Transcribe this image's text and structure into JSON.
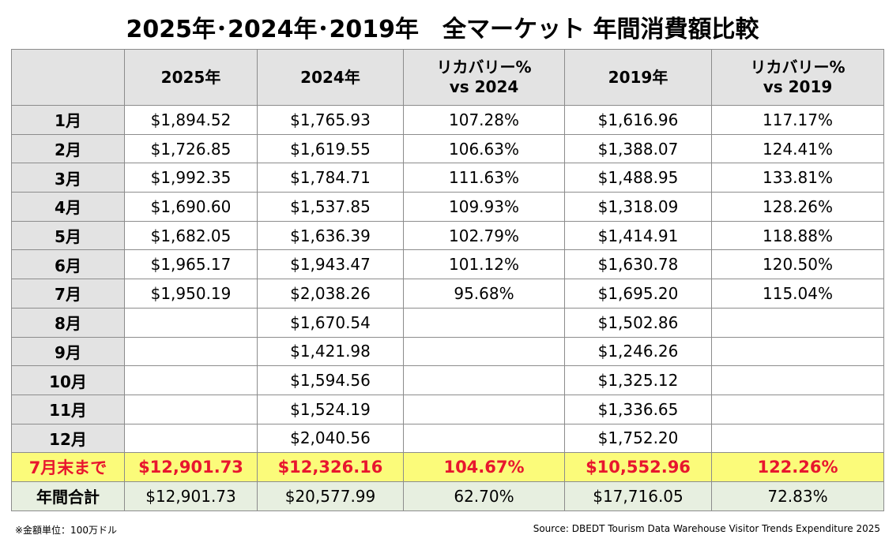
{
  "title": "2025年･2024年･2019年　全マーケット 年間消費額比較",
  "headers": [
    "",
    "2025年",
    "2024年",
    "リカバリー%\nvs 2024",
    "2019年",
    "リカバリー%\nvs 2019"
  ],
  "header_lines": {
    "rec2024": [
      "リカバリー%",
      "vs 2024"
    ],
    "rec2019": [
      "リカバリー%",
      "vs 2019"
    ]
  },
  "rows": [
    {
      "label": "1月",
      "y2025": "$1,894.52",
      "y2024": "$1,765.93",
      "rec2024": "107.28%",
      "y2019": "$1,616.96",
      "rec2019": "117.17%"
    },
    {
      "label": "2月",
      "y2025": "$1,726.85",
      "y2024": "$1,619.55",
      "rec2024": "106.63%",
      "y2019": "$1,388.07",
      "rec2019": "124.41%"
    },
    {
      "label": "3月",
      "y2025": "$1,992.35",
      "y2024": "$1,784.71",
      "rec2024": "111.63%",
      "y2019": "$1,488.95",
      "rec2019": "133.81%"
    },
    {
      "label": "4月",
      "y2025": "$1,690.60",
      "y2024": "$1,537.85",
      "rec2024": "109.93%",
      "y2019": "$1,318.09",
      "rec2019": "128.26%"
    },
    {
      "label": "5月",
      "y2025": "$1,682.05",
      "y2024": "$1,636.39",
      "rec2024": "102.79%",
      "y2019": "$1,414.91",
      "rec2019": "118.88%"
    },
    {
      "label": "6月",
      "y2025": "$1,965.17",
      "y2024": "$1,943.47",
      "rec2024": "101.12%",
      "y2019": "$1,630.78",
      "rec2019": "120.50%"
    },
    {
      "label": "7月",
      "y2025": "$1,950.19",
      "y2024": "$2,038.26",
      "rec2024": "95.68%",
      "y2019": "$1,695.20",
      "rec2019": "115.04%"
    },
    {
      "label": "8月",
      "y2025": "",
      "y2024": "$1,670.54",
      "rec2024": "",
      "y2019": "$1,502.86",
      "rec2019": ""
    },
    {
      "label": "9月",
      "y2025": "",
      "y2024": "$1,421.98",
      "rec2024": "",
      "y2019": "$1,246.26",
      "rec2019": ""
    },
    {
      "label": "10月",
      "y2025": "",
      "y2024": "$1,594.56",
      "rec2024": "",
      "y2019": "$1,325.12",
      "rec2019": ""
    },
    {
      "label": "11月",
      "y2025": "",
      "y2024": "$1,524.19",
      "rec2024": "",
      "y2019": "$1,336.65",
      "rec2019": ""
    },
    {
      "label": "12月",
      "y2025": "",
      "y2024": "$2,040.56",
      "rec2024": "",
      "y2019": "$1,752.20",
      "rec2019": ""
    }
  ],
  "ytd": {
    "label": "7月末まで",
    "y2025": "$12,901.73",
    "y2024": "$12,326.16",
    "rec2024": "104.67%",
    "y2019": "$10,552.96",
    "rec2019": "122.26%"
  },
  "annual": {
    "label": "年間合計",
    "y2025": "$12,901.73",
    "y2024": "$20,577.99",
    "rec2024": "62.70%",
    "y2019": "$17,716.05",
    "rec2019": "72.83%"
  },
  "note": "※金額単位：100万ドル",
  "source": "Source: DBEDT Tourism Data Warehouse Visitor Trends Expenditure 2025",
  "colors": {
    "ytd_bg": "#fbfb7a",
    "ytd_text": "#e8162e",
    "annual_bg": "#e7efe0",
    "header_bg": "#e3e3e3"
  }
}
